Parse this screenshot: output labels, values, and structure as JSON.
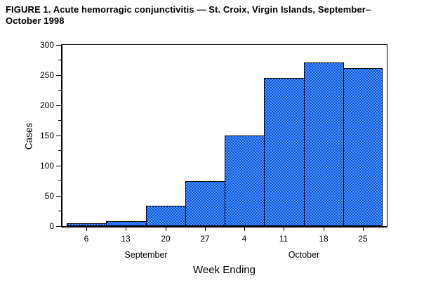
{
  "figure": {
    "title_line1": "FIGURE 1. Acute hemorragic conjunctivitis — St. Croix, Virgin Islands, September–",
    "title_line2": "October 1998"
  },
  "chart_data": {
    "type": "bar",
    "title": "FIGURE 1. Acute hemorragic conjunctivitis — St. Croix, Virgin Islands, September–October 1998",
    "xlabel": "Week Ending",
    "ylabel": "Cases",
    "categories": [
      "6",
      "13",
      "20",
      "27",
      "4",
      "11",
      "18",
      "25"
    ],
    "values": [
      5,
      8,
      34,
      74,
      150,
      245,
      271,
      262
    ],
    "month_groups": [
      {
        "label": "September",
        "start": 0,
        "end": 3
      },
      {
        "label": "October",
        "start": 4,
        "end": 7
      }
    ],
    "ylim": [
      0,
      300
    ],
    "yticks": [
      0,
      50,
      100,
      150,
      200,
      250,
      300
    ],
    "minor_ytick_step": 25,
    "grid": false,
    "legend_position": "none",
    "bars_touching": true,
    "colors": {
      "bar_pattern_light": "#4d9aff",
      "bar_pattern_dark": "#0b4fd8",
      "bar_fallback": "#2c74e8",
      "bar_border": "#000000",
      "axis": "#000000",
      "text": "#000000",
      "background": "#ffffff"
    }
  }
}
